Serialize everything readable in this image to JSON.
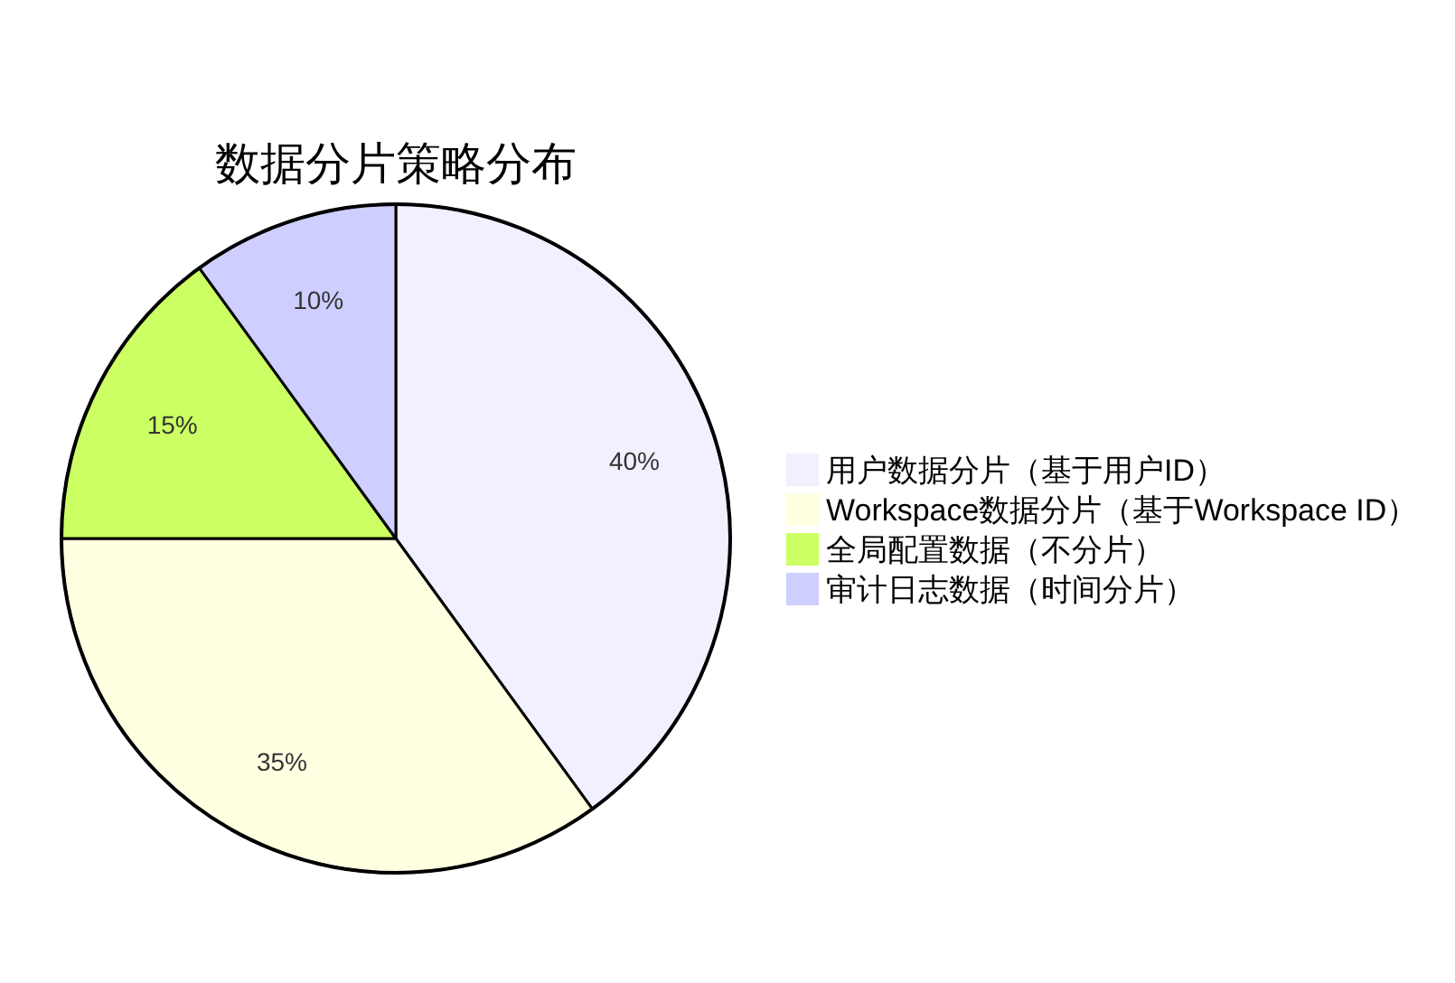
{
  "chart_data": {
    "type": "pie",
    "title": "数据分片策略分布",
    "categories": [
      "用户数据分片（基于用户ID）",
      "Workspace数据分片（基于Workspace ID）",
      "全局配置数据（不分片）",
      "审计日志数据（时间分片）"
    ],
    "values": [
      40,
      35,
      15,
      10
    ],
    "colors": [
      "#f0f0ff",
      "#ffffe2",
      "#cbff63",
      "#cecEff"
    ],
    "value_labels": [
      "40%",
      "35%",
      "15%",
      "10%"
    ],
    "legend": "right"
  }
}
